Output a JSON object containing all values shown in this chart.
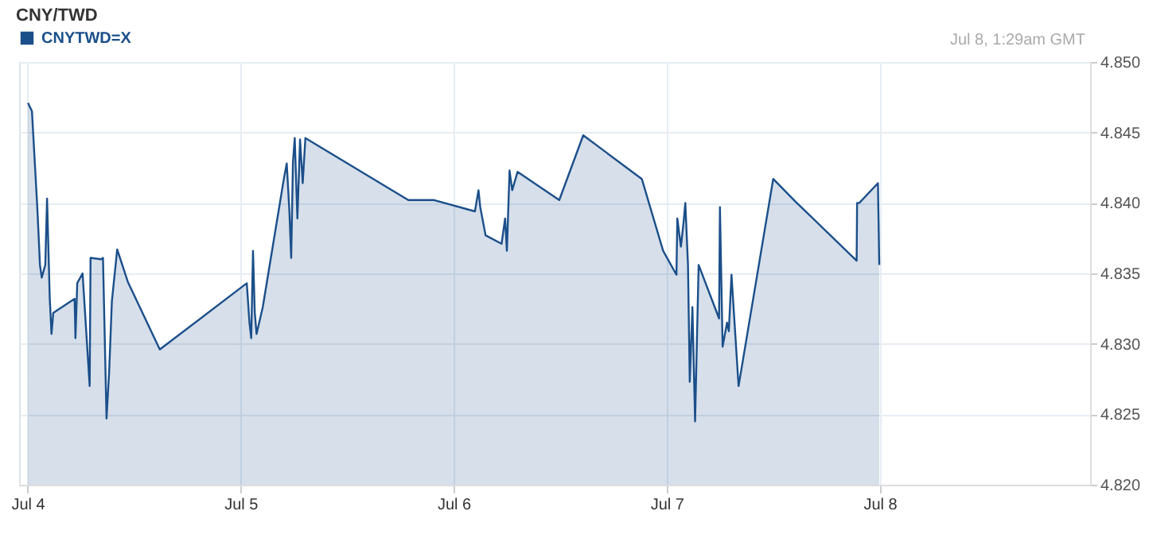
{
  "chart_data": {
    "type": "area",
    "title": "CNY/TWD",
    "subtitle": "Jul 8, 1:29am GMT",
    "x": [
      "--07-04T00:03",
      "--07-04T00:30",
      "--07-04T01:06",
      "--07-04T01:24",
      "--07-04T01:36",
      "--07-04T02:00",
      "--07-04T02:12",
      "--07-04T02:30",
      "--07-04T02:42",
      "--07-04T02:54",
      "--07-04T05:18",
      "--07-04T05:24",
      "--07-04T05:36",
      "--07-04T06:12",
      "--07-04T07:00",
      "--07-04T07:06",
      "--07-04T08:18",
      "--07-04T08:30",
      "--07-04T08:54",
      "--07-04T09:12",
      "--07-04T09:30",
      "--07-04T10:06",
      "--07-04T11:18",
      "--07-04T14:54",
      "--07-05T00:42",
      "--07-05T01:00",
      "--07-05T01:12",
      "--07-05T01:24",
      "--07-05T01:36",
      "--07-05T01:48",
      "--07-05T02:30",
      "--07-05T04:54",
      "--07-05T05:12",
      "--07-05T05:30",
      "--07-05T05:42",
      "--07-05T05:54",
      "--07-05T06:06",
      "--07-05T06:24",
      "--07-05T06:42",
      "--07-05T07:00",
      "--07-05T07:18",
      "--07-05T18:54",
      "--07-05T21:48",
      "--07-06T02:24",
      "--07-06T02:48",
      "--07-06T03:00",
      "--07-06T03:36",
      "--07-06T05:24",
      "--07-06T05:48",
      "--07-06T06:00",
      "--07-06T06:18",
      "--07-06T06:36",
      "--07-06T07:12",
      "--07-06T11:54",
      "--07-06T14:36",
      "--07-06T21:12",
      "--07-06T23:36",
      "--07-07T01:06",
      "--07-07T01:12",
      "--07-07T01:36",
      "--07-07T01:54",
      "--07-07T02:06",
      "--07-07T02:24",
      "--07-07T02:36",
      "--07-07T02:54",
      "--07-07T03:12",
      "--07-07T03:36",
      "--07-07T05:54",
      "--07-07T06:00",
      "--07-07T06:18",
      "--07-07T06:48",
      "--07-07T07:00",
      "--07-07T07:18",
      "--07-07T08:06",
      "--07-07T12:00",
      "--07-07T14:30",
      "--07-07T21:24",
      "--07-07T21:27",
      "--07-07T21:42",
      "--07-07T23:48",
      "--07-07T23:57"
    ],
    "series": [
      {
        "name": "CNYTWD=X",
        "color": "#1b4f8a",
        "values": [
          4.8471,
          4.8465,
          4.8397,
          4.8356,
          4.8347,
          4.8356,
          4.8403,
          4.8333,
          4.8307,
          4.8322,
          4.8332,
          4.8304,
          4.8343,
          4.835,
          4.827,
          4.8361,
          4.836,
          4.8361,
          4.8247,
          4.8281,
          4.833,
          4.8367,
          4.8344,
          4.8296,
          4.8343,
          4.8315,
          4.8304,
          4.8366,
          4.8322,
          4.8307,
          4.8326,
          4.8418,
          4.8428,
          4.8394,
          4.8361,
          4.8429,
          4.8446,
          4.8389,
          4.8445,
          4.8414,
          4.8446,
          4.8402,
          4.8402,
          4.8394,
          4.8409,
          4.8397,
          4.8377,
          4.8371,
          4.8389,
          4.8366,
          4.8423,
          4.8409,
          4.8422,
          4.8402,
          4.8448,
          4.8417,
          4.8366,
          4.8349,
          4.8389,
          4.8369,
          4.8386,
          4.84,
          4.8356,
          4.8273,
          4.8326,
          4.8245,
          4.8356,
          4.8318,
          4.8397,
          4.8298,
          4.8315,
          4.8309,
          4.8349,
          4.827,
          4.8417,
          4.8401,
          4.8359,
          4.84,
          4.84,
          4.8414,
          4.8356
        ]
      }
    ],
    "xlim": [
      "--07-03T23:03",
      "--07-08T23:42"
    ],
    "xticks": [
      {
        "value": "--07-04",
        "label": "Jul 4"
      },
      {
        "value": "--07-05",
        "label": "Jul 5"
      },
      {
        "value": "--07-06",
        "label": "Jul 6"
      },
      {
        "value": "--07-07",
        "label": "Jul 7"
      },
      {
        "value": "--07-08",
        "label": "Jul 8"
      }
    ],
    "ylim": [
      4.82,
      4.85
    ],
    "yticks": [
      {
        "value": 4.82,
        "label": "4.820"
      },
      {
        "value": 4.825,
        "label": "4.825"
      },
      {
        "value": 4.83,
        "label": "4.830"
      },
      {
        "value": 4.835,
        "label": "4.835"
      },
      {
        "value": 4.84,
        "label": "4.840"
      },
      {
        "value": 4.845,
        "label": "4.845"
      },
      {
        "value": 4.85,
        "label": "4.850"
      }
    ],
    "grid": true,
    "legend": "top left"
  }
}
